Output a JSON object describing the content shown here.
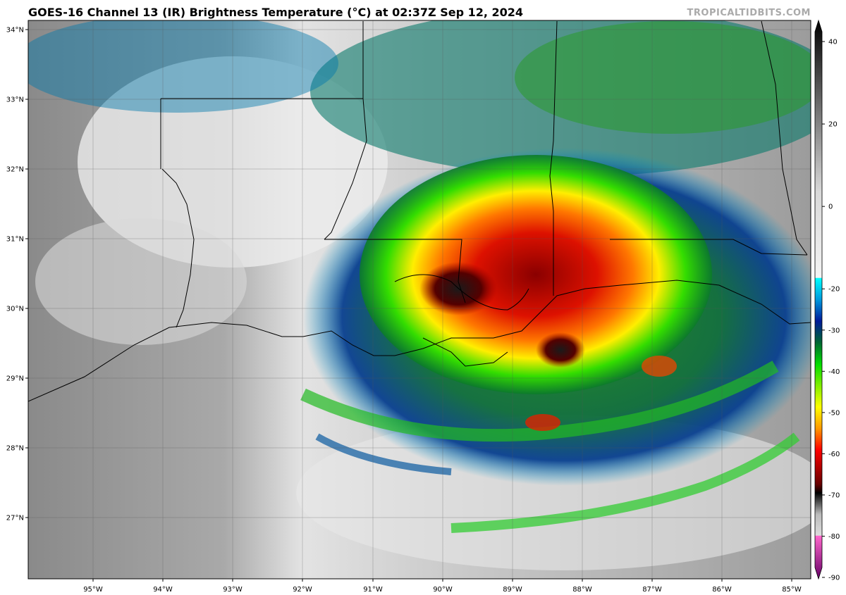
{
  "title": "GOES-16 Channel 13 (IR) Brightness Temperature (°C) at 02:37Z Sep 12, 2024",
  "credit": "TROPICALTIDBITS.COM",
  "lat_labels": [
    "34°N",
    "33°N",
    "32°N",
    "31°N",
    "30°N",
    "29°N",
    "28°N",
    "27°N"
  ],
  "lon_labels": [
    "95°W",
    "94°W",
    "93°W",
    "92°W",
    "91°W",
    "90°W",
    "89°W",
    "88°W",
    "87°W",
    "86°W",
    "85°W"
  ],
  "colorbar": {
    "labels": [
      "40",
      "20",
      "0",
      "-20",
      "-30",
      "-40",
      "-50",
      "-60",
      "-70",
      "-80",
      "-90"
    ],
    "stops": [
      {
        "v": 40,
        "c": "#000000"
      },
      {
        "v": 20,
        "c": "#6e6e6e"
      },
      {
        "v": 0,
        "c": "#d9d9d9"
      },
      {
        "v": -19.9,
        "c": "#f4f4f4"
      },
      {
        "v": -20,
        "c": "#00ffff"
      },
      {
        "v": -25,
        "c": "#0099dd"
      },
      {
        "v": -30,
        "c": "#001a99"
      },
      {
        "v": -35,
        "c": "#006633"
      },
      {
        "v": -40,
        "c": "#00dd00"
      },
      {
        "v": -50,
        "c": "#ffff00"
      },
      {
        "v": -55,
        "c": "#ff9900"
      },
      {
        "v": -60,
        "c": "#ff0000"
      },
      {
        "v": -68,
        "c": "#660000"
      },
      {
        "v": -70,
        "c": "#000000"
      },
      {
        "v": -75,
        "c": "#bbbbbb"
      },
      {
        "v": -79.9,
        "c": "#dddddd"
      },
      {
        "v": -80,
        "c": "#ff66cc"
      },
      {
        "v": -90,
        "c": "#660066"
      }
    ]
  }
}
